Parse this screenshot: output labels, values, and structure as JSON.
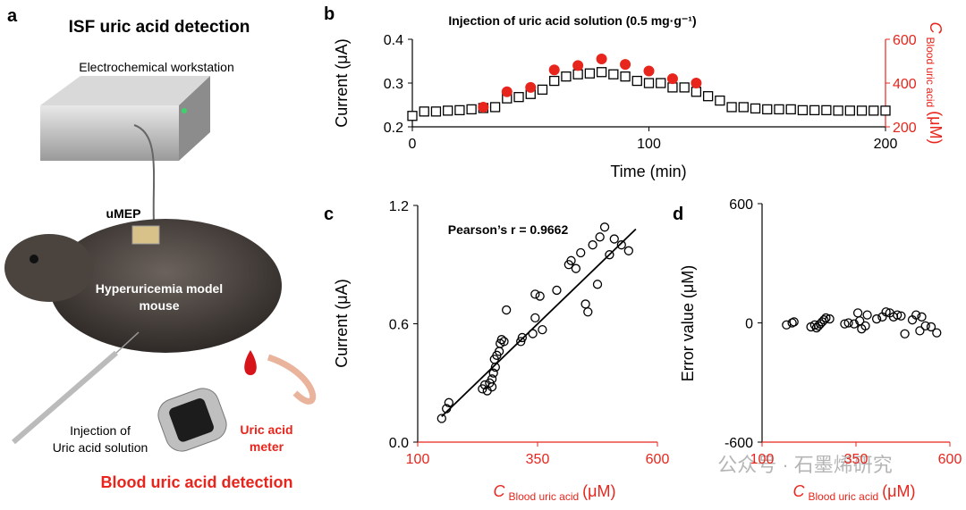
{
  "illustration": {
    "panel": "a",
    "title": "ISF uric acid detection",
    "workstation": "Electrochemical workstation",
    "device": "uMEP",
    "mouse_line1": "Hyperuricemia model",
    "mouse_line2": "mouse",
    "injection_line1": "Injection of",
    "injection_line2": "Uric acid solution",
    "meter_line1": "Uric acid",
    "meter_line2": "meter",
    "blood_title": "Blood uric acid detection"
  },
  "watermark": "公众号 · 石墨烯研究",
  "chart_data": [
    {
      "type": "scatter",
      "panel": "b",
      "title": "Injection of uric acid solution (0.5 mg·g⁻¹)",
      "x_label": "Time (min)",
      "y_label": "Current (μA)",
      "y2_label": {
        "symbol": "C",
        "subscript": "Blood uric acid",
        "unit": "(μM)"
      },
      "xlim": [
        0,
        200
      ],
      "xticks": [
        0,
        100,
        200
      ],
      "ylim": [
        0.2,
        0.4
      ],
      "yticks": [
        0.2,
        0.3,
        0.4
      ],
      "y2lim": [
        200,
        600
      ],
      "y2ticks": [
        200,
        400,
        600
      ],
      "y2_axis_color": "#e8251c",
      "series": [
        {
          "color": "#000000",
          "marker": "square",
          "x": [
            0,
            5,
            10,
            15,
            20,
            25,
            30,
            35,
            40,
            45,
            50,
            55,
            60,
            65,
            70,
            75,
            80,
            85,
            90,
            95,
            100,
            105,
            110,
            115,
            120,
            125,
            130,
            135,
            140,
            145,
            150,
            155,
            160,
            165,
            170,
            175,
            180,
            185,
            190,
            195,
            200
          ],
          "values": [
            0.225,
            0.235,
            0.235,
            0.237,
            0.238,
            0.24,
            0.243,
            0.245,
            0.265,
            0.268,
            0.275,
            0.285,
            0.305,
            0.315,
            0.32,
            0.322,
            0.325,
            0.32,
            0.315,
            0.305,
            0.3,
            0.3,
            0.29,
            0.29,
            0.28,
            0.27,
            0.26,
            0.245,
            0.245,
            0.242,
            0.24,
            0.24,
            0.24,
            0.238,
            0.238,
            0.238,
            0.237,
            0.237,
            0.237,
            0.237,
            0.237
          ]
        },
        {
          "color": "#e8251c",
          "marker": "circle-filled",
          "axis": "y2",
          "x": [
            30,
            40,
            50,
            60,
            70,
            80,
            90,
            100,
            110,
            120
          ],
          "values": [
            290,
            360,
            380,
            460,
            480,
            510,
            485,
            455,
            420,
            400
          ]
        }
      ]
    },
    {
      "type": "scatter",
      "panel": "c",
      "annotation": "Pearson’s r = 0.9662",
      "y_label": "Current (μA)",
      "x_label": {
        "symbol": "C",
        "subscript": "Blood uric acid",
        "unit": "(μM)"
      },
      "xlim": [
        100,
        600
      ],
      "xticks": [
        100,
        350,
        600
      ],
      "ylim": [
        0,
        1.2
      ],
      "yticks": [
        {
          "value": 0,
          "label": "0.0"
        },
        0.6,
        1.2
      ],
      "x_axis_color": "#e8251c",
      "fit": {
        "x": [
          150,
          555
        ],
        "y": [
          0.13,
          1.08
        ]
      },
      "series": [
        {
          "color": "#000000",
          "marker": "circle-open",
          "x": [
            150,
            160,
            165,
            235,
            240,
            245,
            250,
            255,
            255,
            258,
            260,
            262,
            265,
            270,
            272,
            275,
            280,
            285,
            315,
            318,
            340,
            345,
            345,
            355,
            360,
            390,
            415,
            420,
            430,
            440,
            450,
            455,
            465,
            475,
            480,
            490,
            500,
            510,
            525,
            540
          ],
          "values": [
            0.12,
            0.17,
            0.2,
            0.27,
            0.29,
            0.26,
            0.3,
            0.32,
            0.28,
            0.35,
            0.42,
            0.38,
            0.44,
            0.46,
            0.5,
            0.52,
            0.51,
            0.67,
            0.51,
            0.53,
            0.55,
            0.63,
            0.75,
            0.74,
            0.57,
            0.77,
            0.9,
            0.92,
            0.88,
            0.96,
            0.7,
            0.66,
            1.0,
            0.8,
            1.04,
            1.09,
            0.95,
            1.03,
            1.0,
            0.97
          ]
        }
      ]
    },
    {
      "type": "scatter",
      "panel": "d",
      "y_label": "Error value (μM)",
      "x_label": {
        "symbol": "C",
        "subscript": "Blood uric acid",
        "unit": "(μM)"
      },
      "xlim": [
        100,
        600
      ],
      "xticks": [
        100,
        350,
        600
      ],
      "ylim": [
        -600,
        600
      ],
      "yticks": [
        -600,
        0,
        600
      ],
      "x_axis_color": "#e8251c",
      "series": [
        {
          "color": "#000000",
          "marker": "circle-open",
          "x": [
            165,
            180,
            185,
            230,
            240,
            245,
            250,
            255,
            260,
            265,
            270,
            280,
            320,
            330,
            345,
            355,
            360,
            365,
            375,
            380,
            405,
            420,
            430,
            440,
            450,
            460,
            470,
            480,
            500,
            510,
            520,
            525,
            535,
            550,
            565
          ],
          "values": [
            -10,
            0,
            5,
            -20,
            -10,
            -25,
            -15,
            -5,
            5,
            15,
            25,
            20,
            -5,
            0,
            -5,
            50,
            10,
            -30,
            -15,
            40,
            20,
            30,
            55,
            50,
            30,
            40,
            35,
            -55,
            15,
            40,
            -40,
            30,
            -15,
            -20,
            -50
          ]
        }
      ]
    }
  ]
}
